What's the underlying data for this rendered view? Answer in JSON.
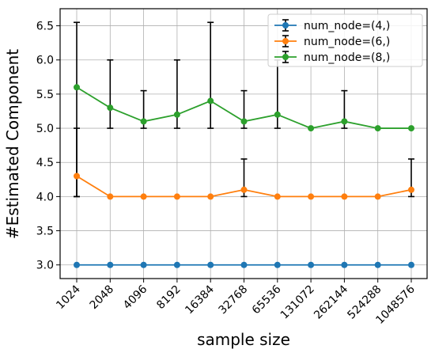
{
  "chart_data": {
    "type": "line",
    "title": "",
    "xlabel": "sample size",
    "ylabel": "#Estimated Component",
    "categories": [
      "1024",
      "2048",
      "4096",
      "8192",
      "16384",
      "32768",
      "65536",
      "131072",
      "262144",
      "524288",
      "1048576"
    ],
    "yticks": [
      "3.0",
      "3.5",
      "4.0",
      "4.5",
      "5.0",
      "5.5",
      "6.0",
      "6.5"
    ],
    "ylim": [
      2.8,
      6.75
    ],
    "grid": true,
    "legend_position": "top-right",
    "series": [
      {
        "name": "num_node=(4,)",
        "color": "#1f77b4",
        "values": [
          3.0,
          3.0,
          3.0,
          3.0,
          3.0,
          3.0,
          3.0,
          3.0,
          3.0,
          3.0,
          3.0
        ],
        "error_low": [
          3.0,
          3.0,
          3.0,
          3.0,
          3.0,
          3.0,
          3.0,
          3.0,
          3.0,
          3.0,
          3.0
        ],
        "error_high": [
          3.0,
          3.0,
          3.0,
          3.0,
          3.0,
          3.0,
          3.0,
          3.0,
          3.0,
          3.0,
          3.0
        ]
      },
      {
        "name": "num_node=(6,)",
        "color": "#ff7f0e",
        "values": [
          4.3,
          4.0,
          4.0,
          4.0,
          4.0,
          4.1,
          4.0,
          4.0,
          4.0,
          4.0,
          4.1
        ],
        "error_low": [
          4.0,
          4.0,
          4.0,
          4.0,
          4.0,
          4.0,
          4.0,
          4.0,
          4.0,
          4.0,
          4.0
        ],
        "error_high": [
          5.0,
          4.0,
          4.0,
          4.0,
          4.0,
          4.55,
          4.0,
          4.0,
          4.0,
          4.0,
          4.55
        ]
      },
      {
        "name": "num_node=(8,)",
        "color": "#2ca02c",
        "values": [
          5.6,
          5.3,
          5.1,
          5.2,
          5.4,
          5.1,
          5.2,
          5.0,
          5.1,
          5.0,
          5.0
        ],
        "error_low": [
          4.0,
          5.0,
          5.0,
          5.0,
          5.0,
          5.0,
          5.0,
          5.0,
          5.0,
          5.0,
          5.0
        ],
        "error_high": [
          6.55,
          6.0,
          5.55,
          6.0,
          6.55,
          5.55,
          6.0,
          5.0,
          5.55,
          5.0,
          5.0
        ]
      }
    ]
  }
}
